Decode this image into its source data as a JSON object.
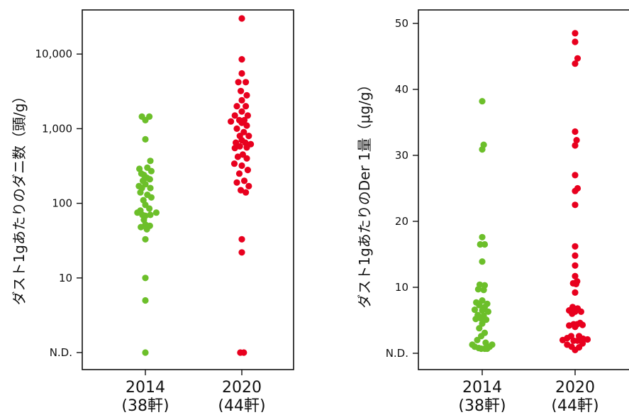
{
  "chart_data": [
    {
      "type": "scatter",
      "ylabel": "ダスト1gあたりのダニ数（頭/g）",
      "y_scale": "log",
      "ylim": [
        1,
        30000
      ],
      "yticks": [
        {
          "value": 1,
          "label": "N.D."
        },
        {
          "value": 10,
          "label": "10"
        },
        {
          "value": 100,
          "label": "100"
        },
        {
          "value": 1000,
          "label": "1,000"
        },
        {
          "value": 10000,
          "label": "10,000"
        }
      ],
      "categories": [
        {
          "year": "2014",
          "count": "(38軒)"
        },
        {
          "year": "2020",
          "count": "(44軒)"
        }
      ],
      "series": [
        {
          "color": "#6cbf2a",
          "points": [
            [
              -0.07,
              1450
            ],
            [
              0.08,
              1450
            ],
            [
              0.0,
              1300
            ],
            [
              0.0,
              720
            ],
            [
              0.1,
              370
            ],
            [
              -0.12,
              290
            ],
            [
              0.04,
              300
            ],
            [
              0.12,
              270
            ],
            [
              -0.08,
              250
            ],
            [
              -0.03,
              240
            ],
            [
              0.03,
              220
            ],
            [
              0.09,
              210
            ],
            [
              -0.05,
              200
            ],
            [
              0.0,
              180
            ],
            [
              -0.13,
              170
            ],
            [
              -0.07,
              160
            ],
            [
              0.1,
              160
            ],
            [
              -0.1,
              140
            ],
            [
              0.04,
              130
            ],
            [
              0.12,
              120
            ],
            [
              -0.04,
              110
            ],
            [
              0.0,
              95
            ],
            [
              0.08,
              85
            ],
            [
              -0.1,
              80
            ],
            [
              0.22,
              75
            ],
            [
              -0.16,
              75
            ],
            [
              -0.06,
              70
            ],
            [
              0.1,
              70
            ],
            [
              0.0,
              68
            ],
            [
              -0.03,
              60
            ],
            [
              0.0,
              52
            ],
            [
              0.09,
              50
            ],
            [
              -0.09,
              48
            ],
            [
              0.03,
              45
            ],
            [
              0.0,
              33
            ],
            [
              0.0,
              10
            ],
            [
              0.0,
              5
            ],
            [
              0.0,
              1
            ]
          ]
        },
        {
          "color": "#e8001e",
          "points": [
            [
              0.0,
              30000
            ],
            [
              0.0,
              8500
            ],
            [
              0.0,
              5500
            ],
            [
              -0.07,
              4200
            ],
            [
              0.08,
              4200
            ],
            [
              -0.02,
              3200
            ],
            [
              0.1,
              2800
            ],
            [
              0.0,
              2400
            ],
            [
              -0.1,
              2000
            ],
            [
              0.08,
              2000
            ],
            [
              0.0,
              1700
            ],
            [
              -0.14,
              1500
            ],
            [
              0.12,
              1500
            ],
            [
              -0.05,
              1300
            ],
            [
              0.05,
              1300
            ],
            [
              -0.22,
              1250
            ],
            [
              0.0,
              1200
            ],
            [
              0.1,
              1100
            ],
            [
              -0.1,
              1000
            ],
            [
              0.04,
              900
            ],
            [
              -0.04,
              800
            ],
            [
              0.14,
              800
            ],
            [
              0.0,
              700
            ],
            [
              -0.12,
              650
            ],
            [
              0.07,
              650
            ],
            [
              0.18,
              620
            ],
            [
              -0.04,
              580
            ],
            [
              0.1,
              560
            ],
            [
              -0.14,
              550
            ],
            [
              0.02,
              450
            ],
            [
              -0.08,
              420
            ],
            [
              0.1,
              400
            ],
            [
              -0.15,
              340
            ],
            [
              0.0,
              320
            ],
            [
              0.12,
              280
            ],
            [
              -0.05,
              250
            ],
            [
              0.05,
              200
            ],
            [
              -0.1,
              190
            ],
            [
              0.14,
              170
            ],
            [
              -0.02,
              150
            ],
            [
              0.08,
              140
            ],
            [
              0.0,
              33
            ],
            [
              0.0,
              22
            ],
            [
              -0.03,
              1
            ],
            [
              0.04,
              1
            ]
          ]
        }
      ]
    },
    {
      "type": "scatter",
      "ylabel": "ダスト1gあたりのDer 1量（μg/g）",
      "y_scale": "linear",
      "ylim": [
        0,
        50
      ],
      "yticks": [
        {
          "value": 0,
          "label": "N.D."
        },
        {
          "value": 10,
          "label": "10"
        },
        {
          "value": 20,
          "label": "20"
        },
        {
          "value": 30,
          "label": "30"
        },
        {
          "value": 40,
          "label": "40"
        },
        {
          "value": 50,
          "label": "50"
        }
      ],
      "categories": [
        {
          "year": "2014",
          "count": "(38軒)"
        },
        {
          "year": "2020",
          "count": "(44軒)"
        }
      ],
      "series": [
        {
          "color": "#6cbf2a",
          "points": [
            [
              0.0,
              38.2
            ],
            [
              0.03,
              31.6
            ],
            [
              0.0,
              30.9
            ],
            [
              0.0,
              17.6
            ],
            [
              -0.04,
              16.5
            ],
            [
              0.05,
              16.5
            ],
            [
              0.0,
              13.9
            ],
            [
              -0.05,
              10.4
            ],
            [
              0.05,
              10.3
            ],
            [
              -0.08,
              9.7
            ],
            [
              0.03,
              9.6
            ],
            [
              0.0,
              8.0
            ],
            [
              -0.12,
              7.7
            ],
            [
              0.1,
              7.5
            ],
            [
              -0.06,
              7.3
            ],
            [
              0.05,
              7.0
            ],
            [
              -0.15,
              6.6
            ],
            [
              0.0,
              6.5
            ],
            [
              0.12,
              6.3
            ],
            [
              -0.09,
              5.8
            ],
            [
              0.03,
              5.7
            ],
            [
              -0.03,
              5.3
            ],
            [
              -0.13,
              5.2
            ],
            [
              0.08,
              5.1
            ],
            [
              0.0,
              4.5
            ],
            [
              -0.06,
              3.8
            ],
            [
              0.05,
              3.1
            ],
            [
              -0.02,
              2.6
            ],
            [
              -0.1,
              2.0
            ],
            [
              0.07,
              1.6
            ],
            [
              -0.2,
              1.3
            ],
            [
              0.2,
              1.3
            ],
            [
              -0.15,
              1.0
            ],
            [
              0.15,
              1.0
            ],
            [
              -0.07,
              0.8
            ],
            [
              0.05,
              0.7
            ],
            [
              -0.02,
              0.7
            ],
            [
              0.1,
              0.7
            ]
          ]
        },
        {
          "color": "#e8001e",
          "points": [
            [
              0.0,
              48.5
            ],
            [
              0.0,
              47.2
            ],
            [
              0.05,
              44.7
            ],
            [
              0.0,
              43.9
            ],
            [
              0.0,
              33.6
            ],
            [
              0.03,
              32.3
            ],
            [
              0.0,
              31.5
            ],
            [
              0.0,
              27.0
            ],
            [
              0.05,
              25.0
            ],
            [
              0.0,
              24.6
            ],
            [
              0.0,
              22.5
            ],
            [
              0.0,
              16.2
            ],
            [
              0.0,
              14.8
            ],
            [
              0.0,
              13.3
            ],
            [
              0.0,
              11.7
            ],
            [
              0.04,
              10.9
            ],
            [
              -0.04,
              10.6
            ],
            [
              0.02,
              10.5
            ],
            [
              0.0,
              9.2
            ],
            [
              -0.05,
              7.0
            ],
            [
              0.05,
              6.8
            ],
            [
              -0.12,
              6.5
            ],
            [
              0.0,
              6.3
            ],
            [
              0.12,
              6.3
            ],
            [
              -0.06,
              6.0
            ],
            [
              0.1,
              4.6
            ],
            [
              -0.03,
              4.4
            ],
            [
              0.04,
              4.4
            ],
            [
              -0.12,
              4.2
            ],
            [
              0.15,
              4.3
            ],
            [
              0.0,
              4.0
            ],
            [
              -0.08,
              2.6
            ],
            [
              0.08,
              2.6
            ],
            [
              -0.16,
              2.3
            ],
            [
              0.16,
              2.2
            ],
            [
              -0.25,
              2.0
            ],
            [
              0.25,
              2.1
            ],
            [
              -0.03,
              1.9
            ],
            [
              0.05,
              1.9
            ],
            [
              0.15,
              1.5
            ],
            [
              -0.16,
              1.3
            ],
            [
              -0.07,
              1.0
            ],
            [
              0.08,
              0.9
            ],
            [
              0.0,
              0.5
            ]
          ]
        }
      ]
    }
  ]
}
